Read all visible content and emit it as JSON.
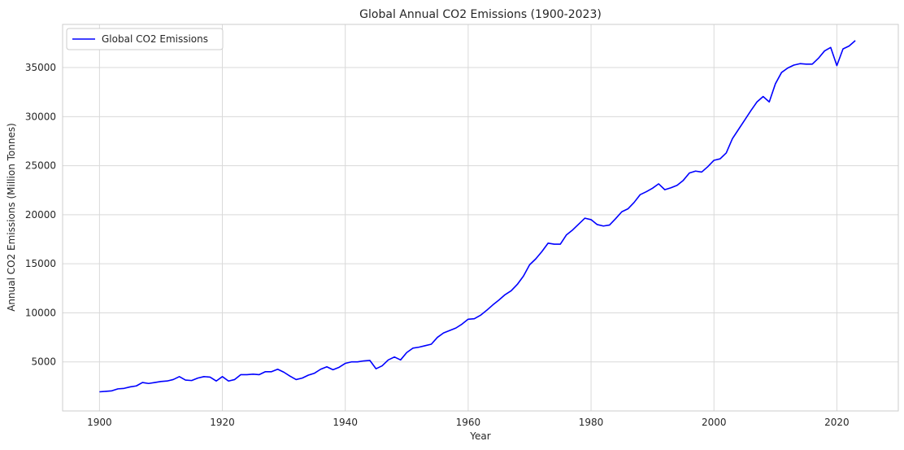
{
  "chart_data": {
    "type": "line",
    "title": "Global Annual CO2 Emissions (1900-2023)",
    "xlabel": "Year",
    "ylabel": "Annual CO2 Emissions (Million Tonnes)",
    "xlim": [
      1894,
      2030
    ],
    "ylim": [
      0,
      39400
    ],
    "xticks": [
      1900,
      1920,
      1940,
      1960,
      1980,
      2000,
      2020
    ],
    "yticks": [
      5000,
      10000,
      15000,
      20000,
      25000,
      30000,
      35000
    ],
    "grid": true,
    "legend_position": "upper left",
    "series": [
      {
        "name": "Global CO2 Emissions",
        "color": "#0000ff",
        "x": [
          1900,
          1901,
          1902,
          1903,
          1904,
          1905,
          1906,
          1907,
          1908,
          1909,
          1910,
          1911,
          1912,
          1913,
          1914,
          1915,
          1916,
          1917,
          1918,
          1919,
          1920,
          1921,
          1922,
          1923,
          1924,
          1925,
          1926,
          1927,
          1928,
          1929,
          1930,
          1931,
          1932,
          1933,
          1934,
          1935,
          1936,
          1937,
          1938,
          1939,
          1940,
          1941,
          1942,
          1943,
          1944,
          1945,
          1946,
          1947,
          1948,
          1949,
          1950,
          1951,
          1952,
          1953,
          1954,
          1955,
          1956,
          1957,
          1958,
          1959,
          1960,
          1961,
          1962,
          1963,
          1964,
          1965,
          1966,
          1967,
          1968,
          1969,
          1970,
          1971,
          1972,
          1973,
          1974,
          1975,
          1976,
          1977,
          1978,
          1979,
          1980,
          1981,
          1982,
          1983,
          1984,
          1985,
          1986,
          1987,
          1988,
          1989,
          1990,
          1991,
          1992,
          1993,
          1994,
          1995,
          1996,
          1997,
          1998,
          1999,
          2000,
          2001,
          2002,
          2003,
          2004,
          2005,
          2006,
          2007,
          2008,
          2009,
          2010,
          2011,
          2012,
          2013,
          2014,
          2015,
          2016,
          2017,
          2018,
          2019,
          2020,
          2021,
          2022,
          2023
        ],
        "y": [
          1950,
          2000,
          2050,
          2250,
          2300,
          2450,
          2550,
          2900,
          2800,
          2900,
          3000,
          3050,
          3200,
          3500,
          3150,
          3100,
          3350,
          3500,
          3450,
          3050,
          3500,
          3050,
          3200,
          3700,
          3700,
          3750,
          3700,
          4000,
          4000,
          4250,
          3950,
          3550,
          3200,
          3350,
          3650,
          3850,
          4250,
          4500,
          4200,
          4450,
          4850,
          5000,
          5000,
          5100,
          5150,
          4300,
          4600,
          5200,
          5500,
          5200,
          5950,
          6400,
          6500,
          6650,
          6800,
          7500,
          7950,
          8200,
          8450,
          8850,
          9350,
          9400,
          9750,
          10250,
          10800,
          11300,
          11850,
          12250,
          12900,
          13750,
          14900,
          15500,
          16250,
          17100,
          17000,
          17000,
          17950,
          18450,
          19050,
          19650,
          19500,
          19000,
          18850,
          18950,
          19600,
          20300,
          20600,
          21250,
          22050,
          22350,
          22700,
          23150,
          22550,
          22750,
          23000,
          23500,
          24250,
          24450,
          24350,
          24900,
          25550,
          25700,
          26300,
          27750,
          28700,
          29650,
          30600,
          31500,
          32050,
          31500,
          33350,
          34500,
          34950,
          35250,
          35400,
          35350,
          35350,
          35950,
          36700,
          37050,
          35200,
          36900,
          37200,
          37750
        ]
      }
    ]
  }
}
